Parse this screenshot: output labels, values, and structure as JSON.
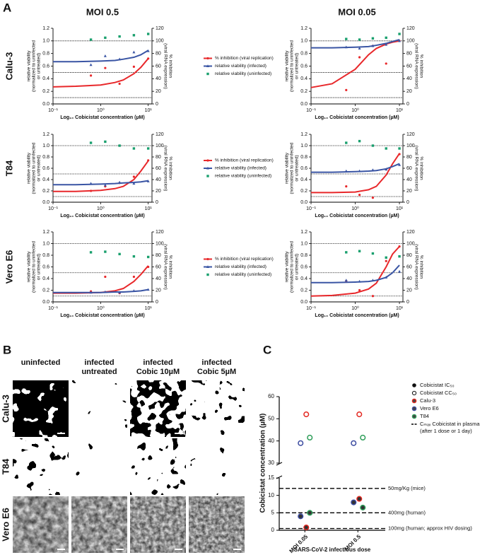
{
  "panel_labels": [
    "A",
    "B",
    "C"
  ],
  "chart_data": [
    {
      "type": "scatter",
      "title": "MOI 0.5",
      "row_label": "Calu-3",
      "legend": "right",
      "x": [
        0.625,
        1.25,
        2.5,
        5,
        10
      ],
      "fit_x": [
        0.1,
        0.3,
        1,
        2,
        3,
        5,
        7,
        10
      ],
      "xlim": [
        0.1,
        12
      ],
      "xticks": [
        {
          "value": 0.1,
          "label": "10⁻¹"
        },
        {
          "value": 1,
          "label": "10⁰"
        },
        {
          "value": 10,
          "label": "10¹"
        }
      ],
      "xlabel": "Log₁₀ Cobicistat concentration (µM)",
      "ylim": [
        0,
        1.2
      ],
      "yticks": [
        {
          "value": 0,
          "label": "0.0"
        },
        0.2,
        0.4,
        0.6,
        0.8,
        {
          "value": 1,
          "label": "1.0"
        },
        1.2
      ],
      "y2lim": [
        0,
        120
      ],
      "y2ticks": [
        0,
        20,
        40,
        60,
        80,
        100,
        120
      ],
      "ylabel": [
        "relative viability",
        "(normalized to uninfected",
        "or untreated)"
      ],
      "y2label": [
        "% inhibition",
        "(viral RNA expression)"
      ],
      "hlines": [
        1,
        0.5,
        0.1
      ],
      "series": [
        {
          "name": "% inhibition (viral replication)",
          "color": "#e8282b",
          "marker": "circle",
          "axis": "y2",
          "values": [
            45,
            57,
            32,
            59,
            72
          ],
          "fit": [
            27,
            28,
            30,
            34,
            38,
            48,
            58,
            72
          ]
        },
        {
          "name": "relative viability (infected)",
          "color": "#3a55a4",
          "marker": "triangle",
          "values": [
            0.62,
            0.76,
            0.71,
            0.82,
            0.84
          ],
          "fit": [
            0.67,
            0.67,
            0.68,
            0.69,
            0.71,
            0.74,
            0.78,
            0.85
          ]
        },
        {
          "name": "relative viability (uninfected)",
          "color": "#1aa06e",
          "marker": "square",
          "values": [
            1.02,
            1.05,
            1.07,
            1.09,
            1.11
          ]
        }
      ]
    },
    {
      "type": "scatter",
      "title": "MOI 0.05",
      "x": [
        0.625,
        1.25,
        2.5,
        5,
        10
      ],
      "fit_x": [
        0.1,
        0.3,
        1,
        2,
        3,
        5,
        7,
        10
      ],
      "xlim": [
        0.1,
        12
      ],
      "xticks": [
        {
          "value": 0.1,
          "label": "10⁻¹"
        },
        {
          "value": 1,
          "label": "10⁰"
        },
        {
          "value": 10,
          "label": "10¹"
        }
      ],
      "xlabel": "Log₁₀ Cobicistat concentration (µM)",
      "ylim": [
        0,
        1.2
      ],
      "yticks": [
        {
          "value": 0,
          "label": "0.0"
        },
        0.2,
        0.4,
        0.6,
        0.8,
        {
          "value": 1,
          "label": "1.0"
        },
        1.2
      ],
      "y2lim": [
        0,
        120
      ],
      "y2ticks": [
        0,
        20,
        40,
        60,
        80,
        100,
        120
      ],
      "ylabel": [
        "relative viability",
        "(normalized to uninfected",
        "or untreated)"
      ],
      "y2label": [
        "% inhibition",
        "(viral RNA expression)"
      ],
      "hlines": [
        1,
        0.5,
        0.1
      ],
      "series": [
        {
          "color": "#e8282b",
          "marker": "circle",
          "axis": "y2",
          "values": [
            22,
            74,
            92,
            64,
            100
          ],
          "fit": [
            26,
            32,
            55,
            78,
            88,
            95,
            98,
            100
          ]
        },
        {
          "color": "#3a55a4",
          "marker": "triangle",
          "values": [
            0.9,
            0.88,
            0.92,
            0.94,
            1.0
          ],
          "fit": [
            0.89,
            0.89,
            0.9,
            0.91,
            0.93,
            0.96,
            0.99,
            1.02
          ]
        },
        {
          "color": "#1aa06e",
          "marker": "square",
          "values": [
            1.03,
            1.02,
            1.04,
            1.05,
            1.11
          ]
        }
      ]
    },
    {
      "type": "scatter",
      "row_label": "T84",
      "legend": "right",
      "x": [
        0.625,
        1.25,
        2.5,
        5,
        10
      ],
      "fit_x": [
        0.1,
        0.3,
        1,
        2,
        3,
        5,
        7,
        10
      ],
      "xlim": [
        0.1,
        12
      ],
      "xticks": [
        {
          "value": 0.1,
          "label": "10⁻¹"
        },
        {
          "value": 1,
          "label": "10⁰"
        },
        {
          "value": 10,
          "label": "10¹"
        }
      ],
      "xlabel": "Log₁₀ Cobicistat concentration (µM)",
      "ylim": [
        0,
        1.2
      ],
      "yticks": [
        {
          "value": 0,
          "label": "0.0"
        },
        0.2,
        0.4,
        0.6,
        0.8,
        {
          "value": 1,
          "label": "1.0"
        },
        1.2
      ],
      "y2lim": [
        0,
        120
      ],
      "y2ticks": [
        0,
        20,
        40,
        60,
        80,
        100,
        120
      ],
      "ylabel": [
        "relative viability",
        "(normalized to uninfected",
        "or untreated)"
      ],
      "y2label": [
        "% inhibition",
        "(viral RNA expression)"
      ],
      "hlines": [
        1,
        0.5,
        0.1
      ],
      "series": [
        {
          "name": "% inhibition (viral replication)",
          "color": "#e8282b",
          "marker": "circle",
          "axis": "y2",
          "values": [
            20,
            28,
            34,
            45,
            74
          ],
          "fit": [
            19,
            19,
            21,
            24,
            28,
            40,
            55,
            73
          ]
        },
        {
          "name": "relative viability (infected)",
          "color": "#3a55a4",
          "marker": "triangle",
          "values": [
            0.33,
            0.3,
            0.35,
            0.33,
            0.37
          ],
          "fit": [
            0.31,
            0.31,
            0.32,
            0.33,
            0.34,
            0.35,
            0.36,
            0.38
          ]
        },
        {
          "name": "relative viability (uninfected)",
          "color": "#1aa06e",
          "marker": "square",
          "values": [
            1.05,
            1.07,
            1.0,
            0.95,
            0.95
          ]
        }
      ]
    },
    {
      "type": "scatter",
      "x": [
        0.625,
        1.25,
        2.5,
        5,
        10
      ],
      "fit_x": [
        0.1,
        0.3,
        1,
        2,
        3,
        5,
        7,
        10
      ],
      "xlim": [
        0.1,
        12
      ],
      "xticks": [
        {
          "value": 0.1,
          "label": "10⁻¹"
        },
        {
          "value": 1,
          "label": "10⁰"
        },
        {
          "value": 10,
          "label": "10¹"
        }
      ],
      "xlabel": "Log₁₀ Cobicistat concentration (µM)",
      "ylim": [
        0,
        1.2
      ],
      "yticks": [
        {
          "value": 0,
          "label": "0.0"
        },
        0.2,
        0.4,
        0.6,
        0.8,
        {
          "value": 1,
          "label": "1.0"
        },
        1.2
      ],
      "y2lim": [
        0,
        120
      ],
      "y2ticks": [
        0,
        20,
        40,
        60,
        80,
        100,
        120
      ],
      "ylabel": [
        "relative viability",
        "(normalized to uninfected",
        "or untreated)"
      ],
      "y2label": [
        "% inhibition",
        "(viral RNA expression)"
      ],
      "hlines": [
        1,
        0.5,
        0.1
      ],
      "series": [
        {
          "color": "#e8282b",
          "marker": "circle",
          "axis": "y2",
          "values": [
            28,
            13,
            8,
            58,
            85
          ],
          "fit": [
            17,
            17,
            18,
            22,
            28,
            48,
            68,
            86
          ]
        },
        {
          "color": "#3a55a4",
          "marker": "triangle",
          "values": [
            0.55,
            0.55,
            0.57,
            0.58,
            0.66
          ],
          "fit": [
            0.53,
            0.53,
            0.54,
            0.55,
            0.56,
            0.59,
            0.63,
            0.68
          ]
        },
        {
          "color": "#1aa06e",
          "marker": "square",
          "values": [
            1.05,
            1.08,
            1.0,
            0.95,
            0.95
          ]
        }
      ]
    },
    {
      "type": "scatter",
      "row_label": "Vero E6",
      "legend": "right",
      "x": [
        0.625,
        1.25,
        2.5,
        5,
        10
      ],
      "fit_x": [
        0.1,
        0.3,
        1,
        2,
        3,
        5,
        7,
        10
      ],
      "xlim": [
        0.1,
        12
      ],
      "xticks": [
        {
          "value": 0.1,
          "label": "10⁻¹"
        },
        {
          "value": 1,
          "label": "10⁰"
        },
        {
          "value": 10,
          "label": "10¹"
        }
      ],
      "xlabel": "Log₁₀ Cobicistat concentration (µM)",
      "ylim": [
        0,
        1.2
      ],
      "yticks": [
        {
          "value": 0,
          "label": "0.0"
        },
        0.2,
        0.4,
        0.6,
        0.8,
        {
          "value": 1,
          "label": "1.0"
        },
        1.2
      ],
      "y2lim": [
        0,
        120
      ],
      "y2ticks": [
        0,
        20,
        40,
        60,
        80,
        100,
        120
      ],
      "ylabel": [
        "relative viability",
        "(normalized to uninfected",
        "or untreated)"
      ],
      "y2label": [
        "% inhibition",
        "(viral RNA expression)"
      ],
      "hlines": [
        1,
        0.5,
        0.1
      ],
      "series": [
        {
          "name": "% inhibition (viral replication)",
          "color": "#e8282b",
          "marker": "circle",
          "axis": "y2",
          "values": [
            18,
            43,
            15,
            43,
            60
          ],
          "fit": [
            15,
            15,
            16,
            19,
            23,
            35,
            47,
            62
          ]
        },
        {
          "name": "relative viability (infected)",
          "color": "#3a55a4",
          "marker": "triangle",
          "values": [
            0.16,
            0.17,
            0.16,
            0.19,
            0.21
          ],
          "fit": [
            0.16,
            0.16,
            0.16,
            0.17,
            0.17,
            0.18,
            0.19,
            0.21
          ]
        },
        {
          "name": "relative viability (uninfected)",
          "color": "#1aa06e",
          "marker": "square",
          "values": [
            0.85,
            0.86,
            0.82,
            0.78,
            0.77
          ]
        }
      ]
    },
    {
      "type": "scatter",
      "x": [
        0.625,
        1.25,
        2.5,
        5,
        10
      ],
      "fit_x": [
        0.1,
        0.3,
        1,
        2,
        3,
        5,
        7,
        10
      ],
      "xlim": [
        0.1,
        12
      ],
      "xticks": [
        {
          "value": 0.1,
          "label": "10⁻¹"
        },
        {
          "value": 1,
          "label": "10⁰"
        },
        {
          "value": 10,
          "label": "10¹"
        }
      ],
      "xlabel": "Log₁₀ Cobicistat concentration (µM)",
      "ylim": [
        0,
        1.2
      ],
      "yticks": [
        {
          "value": 0,
          "label": "0.0"
        },
        0.2,
        0.4,
        0.6,
        0.8,
        {
          "value": 1,
          "label": "1.0"
        },
        1.2
      ],
      "y2lim": [
        0,
        120
      ],
      "y2ticks": [
        0,
        20,
        40,
        60,
        80,
        100,
        120
      ],
      "ylabel": [
        "relative viability",
        "(normalized to uninfected",
        "or untreated)"
      ],
      "y2label": [
        "% inhibition",
        "(viral RNA expression)"
      ],
      "hlines": [
        1,
        0.5,
        0.1
      ],
      "series": [
        {
          "color": "#e8282b",
          "marker": "circle",
          "axis": "y2",
          "values": [
            36,
            20,
            10,
            70,
            95
          ],
          "fit": [
            10,
            11,
            15,
            22,
            32,
            60,
            82,
            95
          ]
        },
        {
          "color": "#3a55a4",
          "marker": "triangle",
          "values": [
            0.37,
            0.35,
            0.37,
            0.42,
            0.52
          ],
          "fit": [
            0.33,
            0.33,
            0.34,
            0.35,
            0.37,
            0.42,
            0.5,
            0.63
          ]
        },
        {
          "color": "#1aa06e",
          "marker": "square",
          "values": [
            0.85,
            0.87,
            0.83,
            0.76,
            0.78
          ]
        }
      ]
    },
    {
      "type": "dot",
      "categories": [
        "MOI 0.05",
        "MOI 0.5"
      ],
      "ylim_top": [
        30,
        60
      ],
      "yticks_top": [
        30,
        40,
        50,
        60
      ],
      "ylim": [
        0,
        15
      ],
      "yticks": [
        0,
        5,
        10,
        15
      ],
      "ylabel": "Cobicistat concentration (µM)",
      "xlabel": "SARS-CoV-2 infectious dose",
      "marker_legend": {
        "ic50": "Cobicistat IC₅₀",
        "cc50": "Cobicistat CC₅₀"
      },
      "series": [
        {
          "name": "Calu-3",
          "color": "#e3261f",
          "ic50": [
            0.8,
            9
          ],
          "cc50": [
            52,
            52
          ]
        },
        {
          "name": "Vero E6",
          "color": "#3b4ba0",
          "ic50": [
            4,
            8
          ],
          "cc50": [
            39,
            39
          ]
        },
        {
          "name": "T84",
          "color": "#2f9e5a",
          "ic50": [
            5,
            6.5
          ],
          "cc50": [
            41.5,
            41.5
          ]
        }
      ],
      "reference_legend": [
        "Cₘₐₓ Cobicistat in plasma",
        "(after 1 dose or 1 day)"
      ],
      "reference_lines": [
        {
          "value": 12,
          "label": "50mg/Kg (mice)"
        },
        {
          "value": 5,
          "label": "400mg (human)"
        },
        {
          "value": 0.5,
          "label": "100mg (human; approx HIV dosing)"
        }
      ]
    }
  ],
  "micrographs": {
    "columns": [
      [
        "uninfected"
      ],
      [
        "infected",
        "untreated"
      ],
      [
        "infected",
        "Cobic 10µM"
      ],
      [
        "infected",
        "Cobic 5µM"
      ]
    ],
    "rows": [
      "Calu-3",
      "T84",
      "Vero E6"
    ]
  }
}
